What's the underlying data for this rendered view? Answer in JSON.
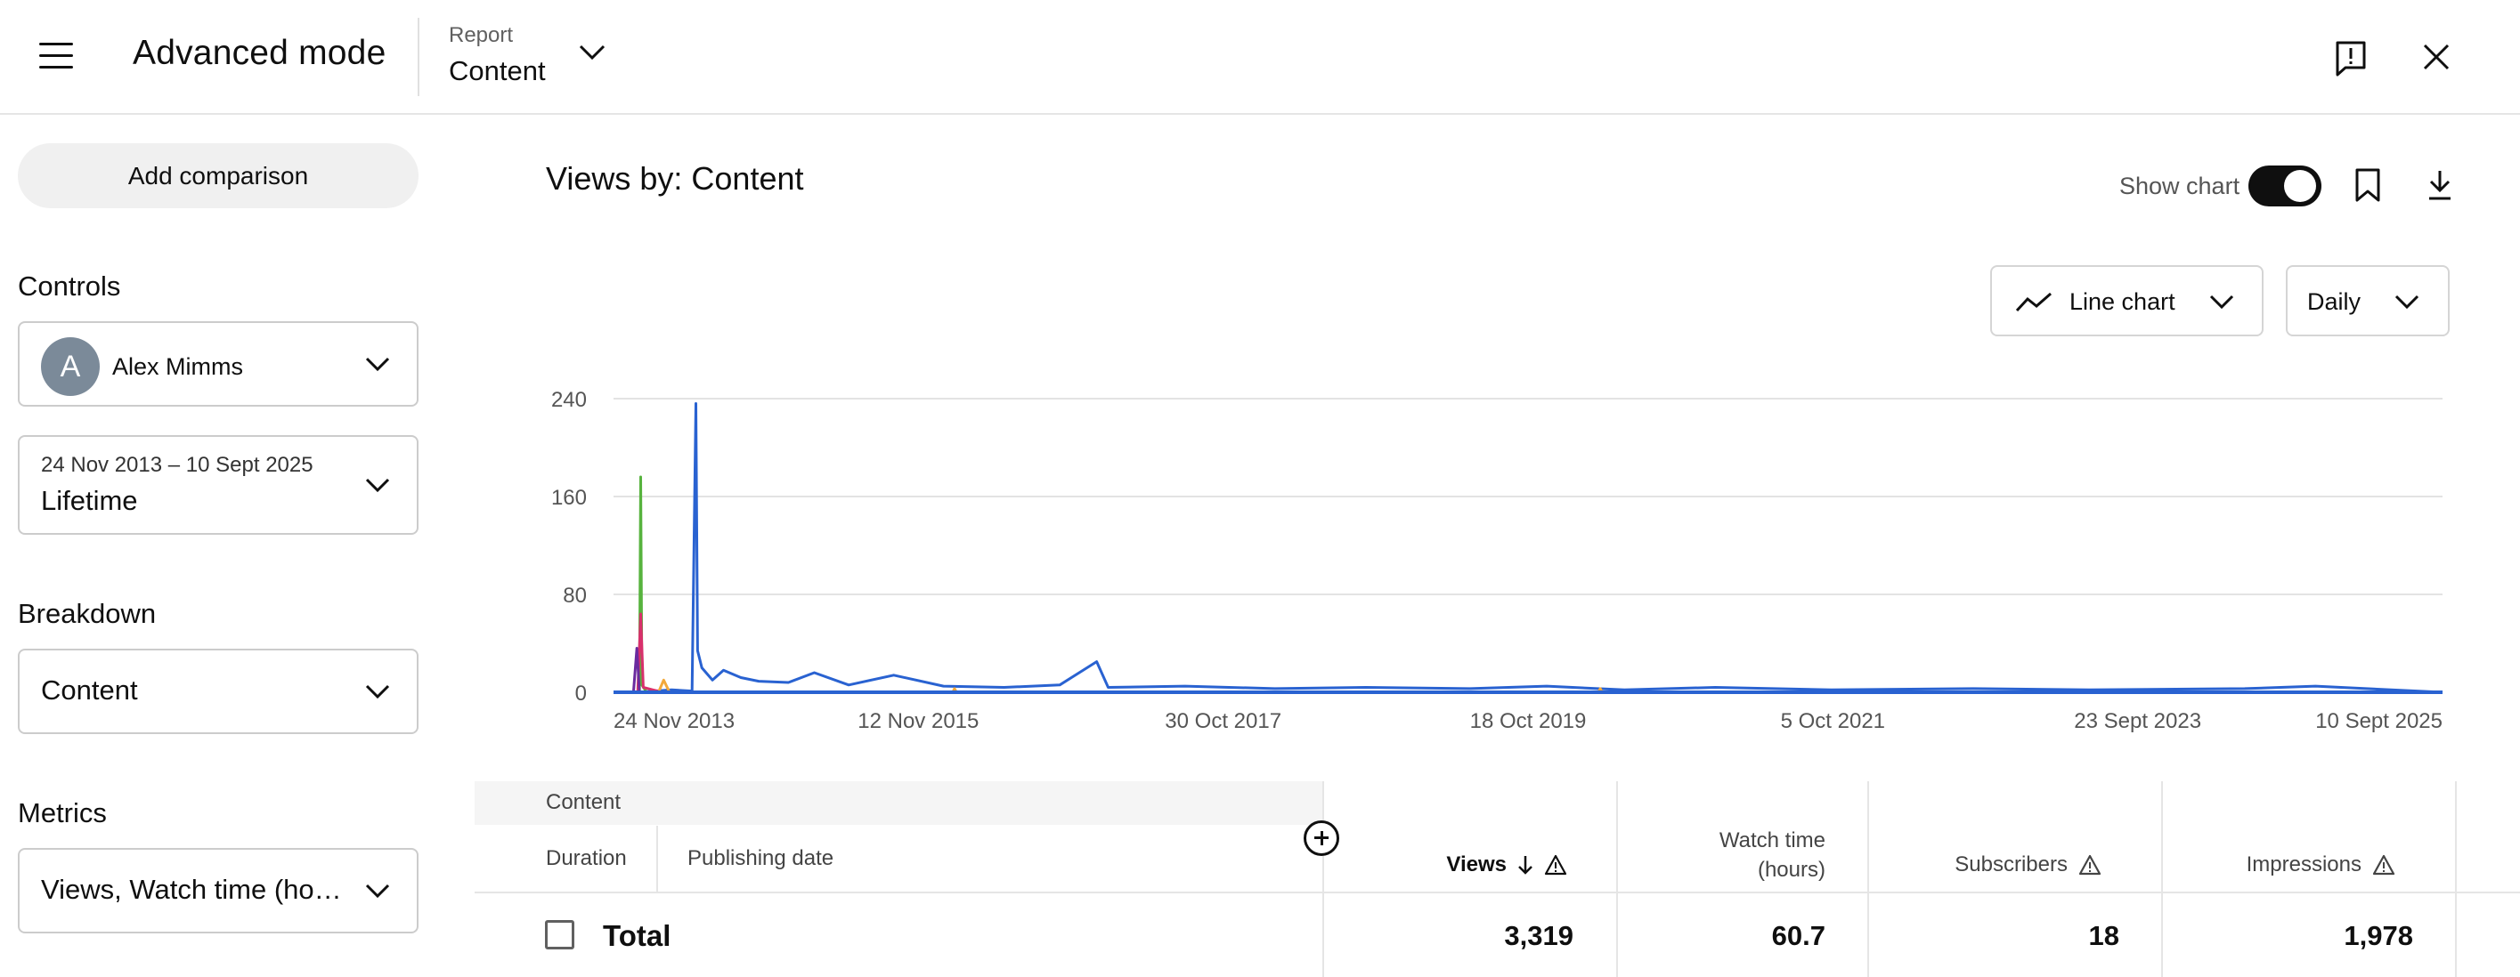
{
  "header": {
    "title": "Advanced mode",
    "report_label": "Report",
    "report_value": "Content"
  },
  "sidebar": {
    "add_comparison": "Add comparison",
    "controls_heading": "Controls",
    "channel": {
      "avatar_letter": "A",
      "name": "Alex Mimms"
    },
    "date": {
      "range": "24 Nov 2013 – 10 Sept 2025",
      "label": "Lifetime"
    },
    "breakdown_heading": "Breakdown",
    "breakdown_value": "Content",
    "metrics_heading": "Metrics",
    "metrics_value": "Views, Watch time (hours)"
  },
  "main": {
    "title": "Views by: Content",
    "show_chart_label": "Show chart",
    "show_chart_on": true,
    "chart_type": "Line chart",
    "interval": "Daily"
  },
  "chart_data": {
    "type": "line",
    "title": "",
    "xlabel": "",
    "ylabel": "",
    "ylim": [
      0,
      240
    ],
    "yticks": [
      0,
      80,
      160,
      240
    ],
    "xticks": [
      "24 Nov 2013",
      "12 Nov 2015",
      "30 Oct 2017",
      "18 Oct 2019",
      "5 Oct 2021",
      "23 Sept 2023",
      "10 Sept 2025"
    ],
    "x_range": [
      "2013-11-24",
      "2025-09-10"
    ],
    "grid": true,
    "series": [
      {
        "color": "#2962d1",
        "points": [
          [
            "2013-11-24",
            0
          ],
          [
            "2014-01-20",
            0
          ],
          [
            "2014-04-10",
            2
          ],
          [
            "2014-05-28",
            1
          ],
          [
            "2014-06-06",
            236
          ],
          [
            "2014-06-10",
            34
          ],
          [
            "2014-06-20",
            20
          ],
          [
            "2014-07-15",
            10
          ],
          [
            "2014-08-10",
            18
          ],
          [
            "2014-09-20",
            12
          ],
          [
            "2014-11-01",
            9
          ],
          [
            "2015-01-10",
            8
          ],
          [
            "2015-03-12",
            16
          ],
          [
            "2015-06-01",
            6
          ],
          [
            "2015-09-15",
            14
          ],
          [
            "2016-01-10",
            5
          ],
          [
            "2016-06-01",
            4
          ],
          [
            "2016-10-10",
            6
          ],
          [
            "2017-01-05",
            25
          ],
          [
            "2017-02-01",
            4
          ],
          [
            "2017-08-01",
            5
          ],
          [
            "2018-03-01",
            3
          ],
          [
            "2018-10-01",
            4
          ],
          [
            "2019-06-01",
            3
          ],
          [
            "2019-12-01",
            5
          ],
          [
            "2020-06-01",
            2
          ],
          [
            "2021-01-01",
            4
          ],
          [
            "2021-10-01",
            2
          ],
          [
            "2022-09-01",
            3
          ],
          [
            "2023-06-01",
            2
          ],
          [
            "2024-06-01",
            3
          ],
          [
            "2024-11-15",
            5
          ],
          [
            "2025-09-10",
            0
          ]
        ]
      },
      {
        "color": "#57b33e",
        "points": [
          [
            "2014-01-24",
            0
          ],
          [
            "2014-01-27",
            176
          ],
          [
            "2014-01-30",
            6
          ],
          [
            "2014-02-10",
            0
          ]
        ]
      },
      {
        "color": "#d8306c",
        "points": [
          [
            "2014-01-20",
            0
          ],
          [
            "2014-01-27",
            64
          ],
          [
            "2014-02-02",
            4
          ],
          [
            "2014-02-25",
            2
          ],
          [
            "2014-03-20",
            0
          ]
        ]
      },
      {
        "color": "#6a2a9e",
        "points": [
          [
            "2014-01-10",
            0
          ],
          [
            "2014-01-18",
            36
          ],
          [
            "2014-01-24",
            0
          ]
        ]
      },
      {
        "color": "#f2a93b",
        "points": [
          [
            "2014-03-10",
            0
          ],
          [
            "2014-03-22",
            10
          ],
          [
            "2014-04-05",
            0
          ],
          [
            "2016-02-01",
            0
          ],
          [
            "2016-02-05",
            3
          ],
          [
            "2016-02-10",
            0
          ],
          [
            "2020-04-01",
            0
          ],
          [
            "2020-04-05",
            3
          ],
          [
            "2020-04-10",
            0
          ]
        ]
      }
    ]
  },
  "table": {
    "col_content": "Content",
    "col_duration": "Duration",
    "col_publishing_date": "Publishing date",
    "metrics": [
      {
        "label": "Views",
        "sorted": true,
        "warning": true
      },
      {
        "label": "Watch time (hours)",
        "warning": false
      },
      {
        "label": "Subscribers",
        "warning": true
      },
      {
        "label": "Impressions",
        "warning": true
      }
    ],
    "total": {
      "label": "Total",
      "views": "3,319",
      "watch_time": "60.7",
      "subscribers": "18",
      "impressions": "1,978"
    }
  }
}
